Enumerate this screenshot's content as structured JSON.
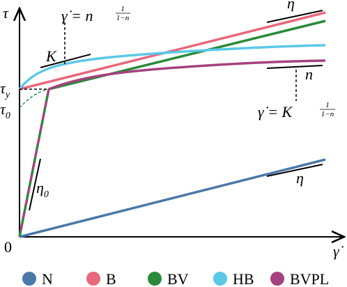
{
  "axes": {
    "y_label": "τ",
    "x_label": "γ̇",
    "origin": "0"
  },
  "levels": {
    "tau_y": {
      "symbol": "τ",
      "subscript": "y"
    },
    "tau_0": {
      "symbol": "τ",
      "subscript": "0"
    }
  },
  "annotations": {
    "K": "K",
    "eta_top": "η",
    "n": "n",
    "eta_bottom": "η",
    "eta_0": {
      "symbol": "η",
      "subscript": "0"
    },
    "formula_top": {
      "base": "γ̇ = n",
      "numerator": "1",
      "denominator": "1−n"
    },
    "formula_bottom": {
      "base": "γ̇ = K",
      "numerator": "1",
      "denominator": "1−n"
    }
  },
  "legend": [
    {
      "name": "N",
      "color": "#4a78a8"
    },
    {
      "name": "B",
      "color": "#e8677a"
    },
    {
      "name": "BV",
      "color": "#2a8a3a"
    },
    {
      "name": "HB",
      "color": "#5bc8e8"
    },
    {
      "name": "BVPL",
      "color": "#a5417f"
    }
  ]
}
